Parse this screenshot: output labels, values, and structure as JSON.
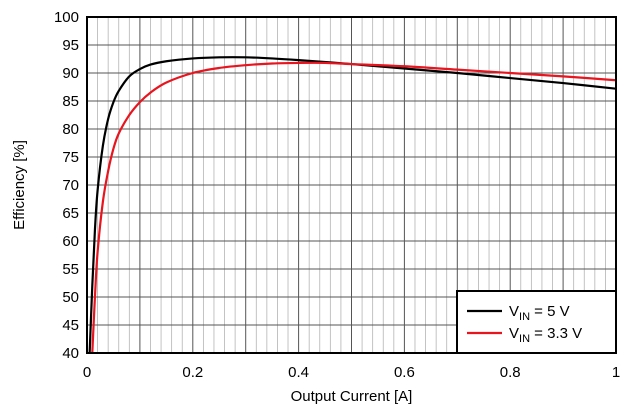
{
  "chart_data": {
    "type": "line",
    "xlabel": "Output Current [A]",
    "ylabel": "Efficiency [%]",
    "xlim": [
      0,
      1
    ],
    "ylim": [
      40,
      100
    ],
    "x_ticks": [
      0,
      0.1,
      0.2,
      0.3,
      0.4,
      0.5,
      0.6,
      0.7,
      0.8,
      0.9,
      1
    ],
    "x_tick_labels": [
      "0",
      "",
      "0.2",
      "",
      "0.4",
      "",
      "0.6",
      "",
      "0.8",
      "",
      "1"
    ],
    "y_ticks": [
      40,
      45,
      50,
      55,
      60,
      65,
      70,
      75,
      80,
      85,
      90,
      95,
      100
    ],
    "y_tick_labels": [
      "40",
      "45",
      "50",
      "55",
      "60",
      "65",
      "70",
      "75",
      "80",
      "85",
      "90",
      "95",
      "100"
    ],
    "minor_x_step": 0.02,
    "grid": true,
    "legend_position": "bottom-right",
    "series": [
      {
        "name": "VIN = 5 V",
        "label_main": "V",
        "label_sub": "IN",
        "label_rest": " = 5 V",
        "color": "#000000",
        "x": [
          0.005,
          0.01,
          0.015,
          0.02,
          0.03,
          0.04,
          0.05,
          0.06,
          0.08,
          0.1,
          0.12,
          0.15,
          0.2,
          0.25,
          0.3,
          0.35,
          0.4,
          0.5,
          0.6,
          0.7,
          0.8,
          0.9,
          1.0
        ],
        "y": [
          40,
          52,
          62,
          69,
          77,
          81.8,
          84.8,
          86.8,
          89.4,
          90.7,
          91.5,
          92.1,
          92.6,
          92.8,
          92.8,
          92.6,
          92.3,
          91.6,
          90.8,
          90.0,
          89.1,
          88.2,
          87.2
        ]
      },
      {
        "name": "VIN = 3.3 V",
        "label_main": "V",
        "label_sub": "IN",
        "label_rest": " = 3.3 V",
        "color": "#e8141e",
        "x": [
          0.01,
          0.015,
          0.02,
          0.03,
          0.04,
          0.05,
          0.06,
          0.08,
          0.1,
          0.12,
          0.15,
          0.2,
          0.25,
          0.3,
          0.35,
          0.4,
          0.45,
          0.5,
          0.6,
          0.7,
          0.8,
          0.9,
          1.0
        ],
        "y": [
          40,
          50,
          58,
          67,
          72.5,
          76.5,
          79.2,
          82.5,
          84.8,
          86.5,
          88.3,
          90.0,
          90.9,
          91.4,
          91.7,
          91.8,
          91.8,
          91.6,
          91.2,
          90.6,
          90.0,
          89.4,
          88.7
        ]
      }
    ]
  }
}
